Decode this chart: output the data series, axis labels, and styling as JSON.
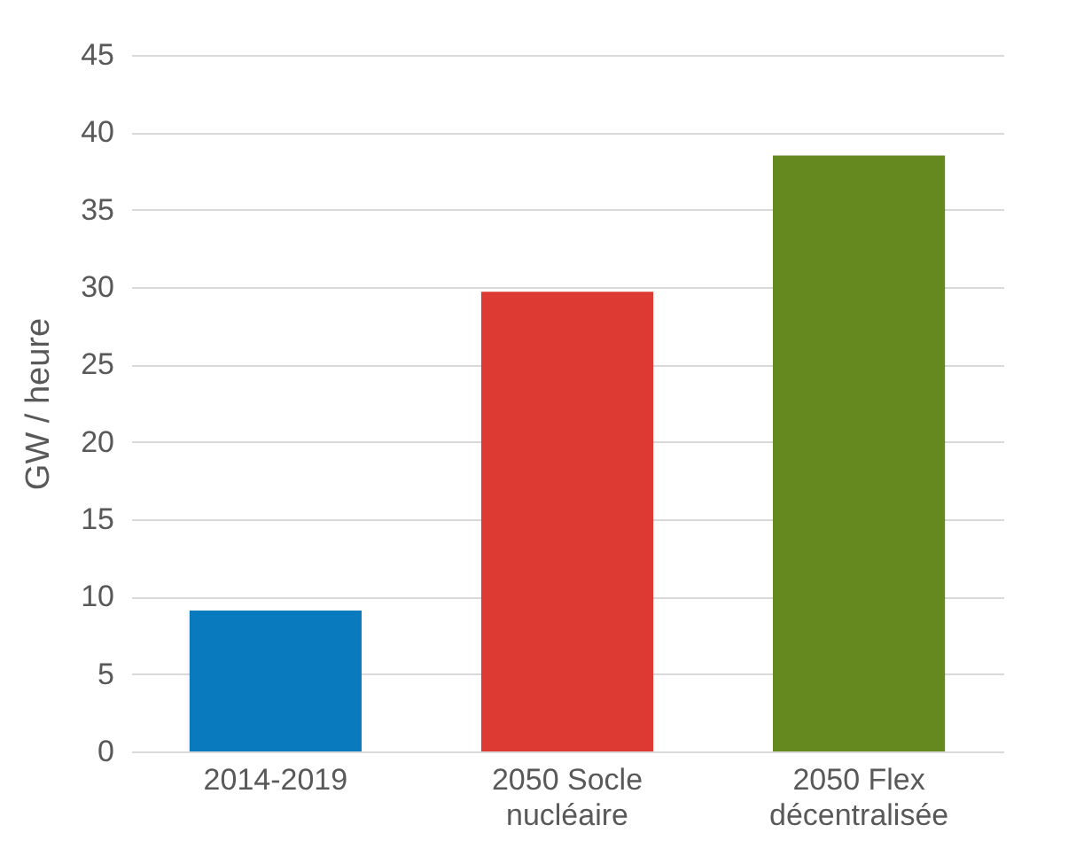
{
  "chart_data": {
    "type": "bar",
    "ylabel": "GW / heure",
    "categories": [
      "2014-2019",
      "2050 Socle nucléaire",
      "2050 Flex décentralisée"
    ],
    "values": [
      9.1,
      29.7,
      38.5
    ],
    "colors": [
      "#0a7abf",
      "#dc3a32",
      "#65891e"
    ],
    "ylim": [
      0,
      45
    ],
    "yticks": [
      0,
      5,
      10,
      15,
      20,
      25,
      30,
      35,
      40,
      45
    ],
    "grid": "y"
  }
}
